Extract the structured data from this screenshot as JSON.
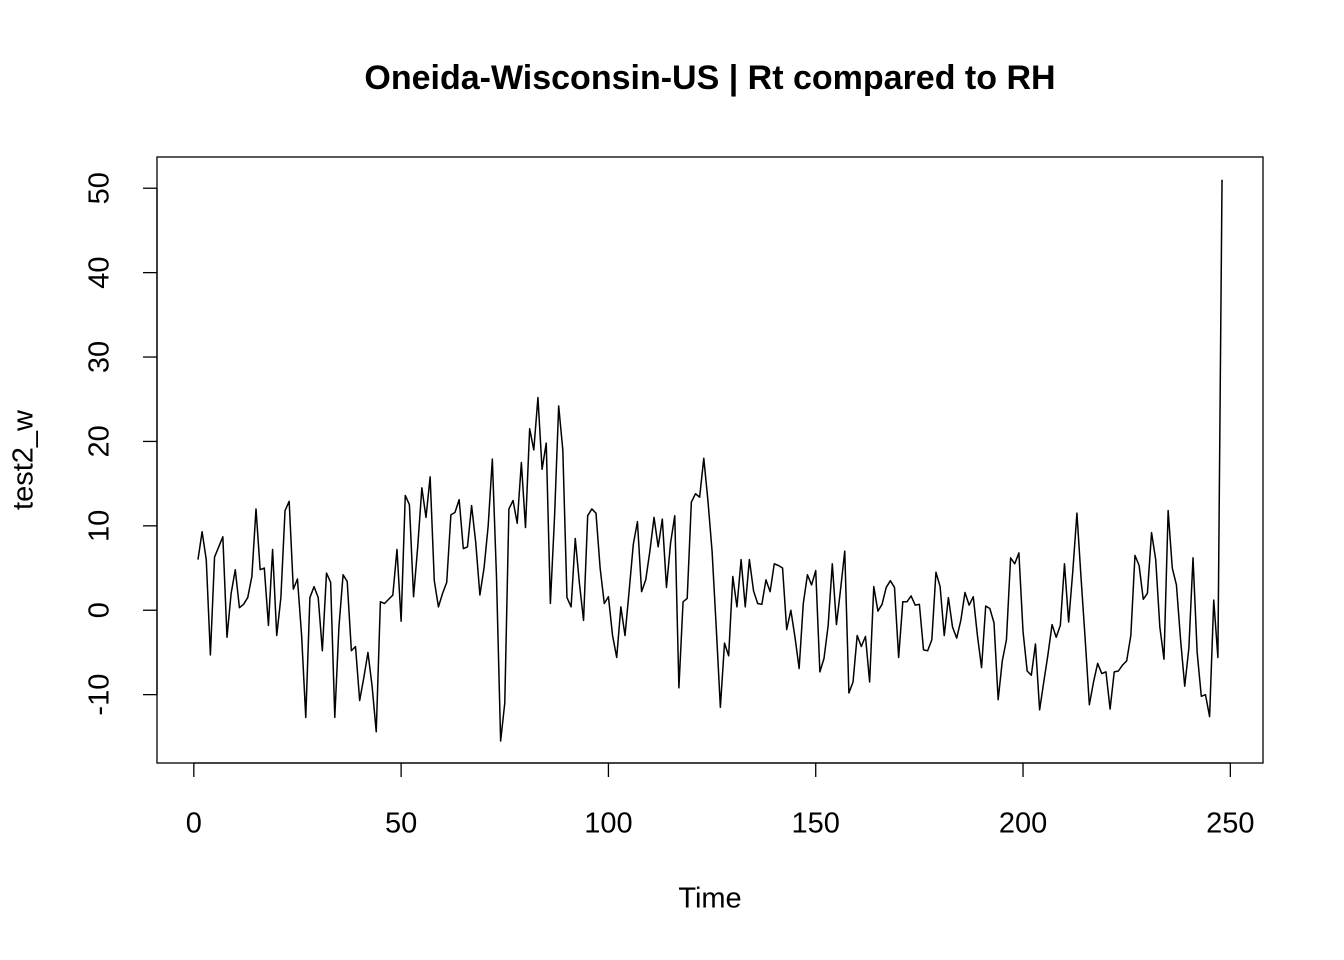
{
  "chart_data": {
    "type": "line",
    "title": "Oneida-Wisconsin-US | Rt compared to RH",
    "x_label": "Time",
    "y_label": "test2_w",
    "x": [
      1,
      2,
      3,
      4,
      5,
      6,
      7,
      8,
      9,
      10,
      11,
      12,
      13,
      14,
      15,
      16,
      17,
      18,
      19,
      20,
      21,
      22,
      23,
      24,
      25,
      26,
      27,
      28,
      29,
      30,
      31,
      32,
      33,
      34,
      35,
      36,
      37,
      38,
      39,
      40,
      41,
      42,
      43,
      44,
      45,
      46,
      47,
      48,
      49,
      50,
      51,
      52,
      53,
      54,
      55,
      56,
      57,
      58,
      59,
      60,
      61,
      62,
      63,
      64,
      65,
      66,
      67,
      68,
      69,
      70,
      71,
      72,
      73,
      74,
      75,
      76,
      77,
      78,
      79,
      80,
      81,
      82,
      83,
      84,
      85,
      86,
      87,
      88,
      89,
      90,
      91,
      92,
      93,
      94,
      95,
      96,
      97,
      98,
      99,
      100,
      101,
      102,
      103,
      104,
      105,
      106,
      107,
      108,
      109,
      110,
      111,
      112,
      113,
      114,
      115,
      116,
      117,
      118,
      119,
      120,
      121,
      122,
      123,
      124,
      125,
      126,
      127,
      128,
      129,
      130,
      131,
      132,
      133,
      134,
      135,
      136,
      137,
      138,
      139,
      140,
      141,
      142,
      143,
      144,
      145,
      146,
      147,
      148,
      149,
      150,
      151,
      152,
      153,
      154,
      155,
      156,
      157,
      158,
      159,
      160,
      161,
      162,
      163,
      164,
      165,
      166,
      167,
      168,
      169,
      170,
      171,
      172,
      173,
      174,
      175,
      176,
      177,
      178,
      179,
      180,
      181,
      182,
      183,
      184,
      185,
      186,
      187,
      188,
      189,
      190,
      191,
      192,
      193,
      194,
      195,
      196,
      197,
      198,
      199,
      200,
      201,
      202,
      203,
      204,
      205,
      206,
      207,
      208,
      209,
      210,
      211,
      212,
      213,
      214,
      215,
      216,
      217,
      218,
      219,
      220,
      221,
      222,
      223,
      224,
      225,
      226,
      227,
      228,
      229,
      230,
      231,
      232,
      233,
      234,
      235,
      236,
      237,
      238,
      239,
      240,
      241,
      242,
      243,
      244,
      245,
      246,
      247,
      248
    ],
    "values": [
      6,
      9.3,
      6,
      -5.3,
      6.3,
      7.5,
      8.7,
      -3.2,
      2,
      4.8,
      0.3,
      0.7,
      1.5,
      4,
      12,
      4.8,
      5,
      -1.8,
      7.2,
      -3,
      1.5,
      11.8,
      12.9,
      2.5,
      3.7,
      -3,
      -12.7,
      1.5,
      2.8,
      1.5,
      -4.8,
      4.4,
      3.3,
      -12.7,
      -2,
      4.2,
      3.4,
      -4.8,
      -4.3,
      -10.7,
      -8,
      -5,
      -9,
      -14.4,
      1,
      0.8,
      1.3,
      1.8,
      7.2,
      -1.3,
      13.6,
      12.5,
      1.6,
      7.5,
      14.5,
      11,
      15.8,
      3.5,
      0.4,
      2,
      3.3,
      11.3,
      11.6,
      13.1,
      7.3,
      7.5,
      12.4,
      8,
      1.8,
      5,
      10,
      17.9,
      4,
      -15.5,
      -11,
      12,
      13,
      10.3,
      17.5,
      9.8,
      21.5,
      19,
      25.2,
      16.7,
      19.8,
      0.8,
      11,
      24.2,
      19,
      1.5,
      0.4,
      8.5,
      3.2,
      -1.2,
      11.2,
      12,
      11.5,
      5,
      0.8,
      1.6,
      -3,
      -5.6,
      0.4,
      -3,
      2.3,
      7.8,
      10.5,
      2.2,
      3.6,
      7,
      11,
      7.5,
      10.8,
      2.7,
      8,
      11.2,
      -9.2,
      1,
      1.4,
      12.8,
      13.8,
      13.4,
      18,
      13,
      7,
      -2,
      -11.5,
      -3.9,
      -5.4,
      4,
      0.4,
      6,
      0.4,
      6,
      2.3,
      0.8,
      0.7,
      3.6,
      2.2,
      5.5,
      5.3,
      5,
      -2.3,
      0,
      -3.2,
      -6.9,
      0.8,
      4.2,
      3,
      4.7,
      -7.3,
      -5.7,
      -1.8,
      5.5,
      -1.7,
      2.5,
      7,
      -9.8,
      -8.5,
      -3,
      -4.3,
      -3.1,
      -8.5,
      2.8,
      -0.1,
      0.7,
      2.7,
      3.5,
      2.7,
      -5.6,
      1,
      1,
      1.7,
      0.6,
      0.7,
      -4.7,
      -4.8,
      -3.5,
      4.5,
      2.8,
      -3,
      1.5,
      -2,
      -3.3,
      -1.2,
      2.1,
      0.6,
      1.6,
      -3,
      -6.8,
      0.5,
      0.2,
      -1.5,
      -10.6,
      -6,
      -3.5,
      6.2,
      5.5,
      6.8,
      -2.5,
      -7.2,
      -7.7,
      -4,
      -11.8,
      -8.5,
      -5.3,
      -1.7,
      -3.2,
      -1.8,
      5.5,
      -1.4,
      4.6,
      11.5,
      3.8,
      -3.5,
      -11.2,
      -8.5,
      -6.3,
      -7.5,
      -7.3,
      -11.7,
      -7.3,
      -7.2,
      -6.5,
      -6,
      -3,
      6.5,
      5.3,
      1.3,
      2,
      9.2,
      6,
      -2,
      -5.8,
      11.8,
      5,
      3,
      -3.5,
      -9,
      -4.5,
      6.2,
      -5,
      -10.2,
      -10,
      -12.6,
      1.2,
      -5.6,
      51
    ],
    "color": "#000000",
    "xlim": [
      -8.88,
      257.88
    ],
    "xticks": [
      0,
      50,
      100,
      150,
      200,
      250
    ],
    "ylim": [
      -18.1,
      53.7
    ],
    "yticks": [
      -10,
      0,
      10,
      20,
      30,
      40,
      50
    ]
  }
}
